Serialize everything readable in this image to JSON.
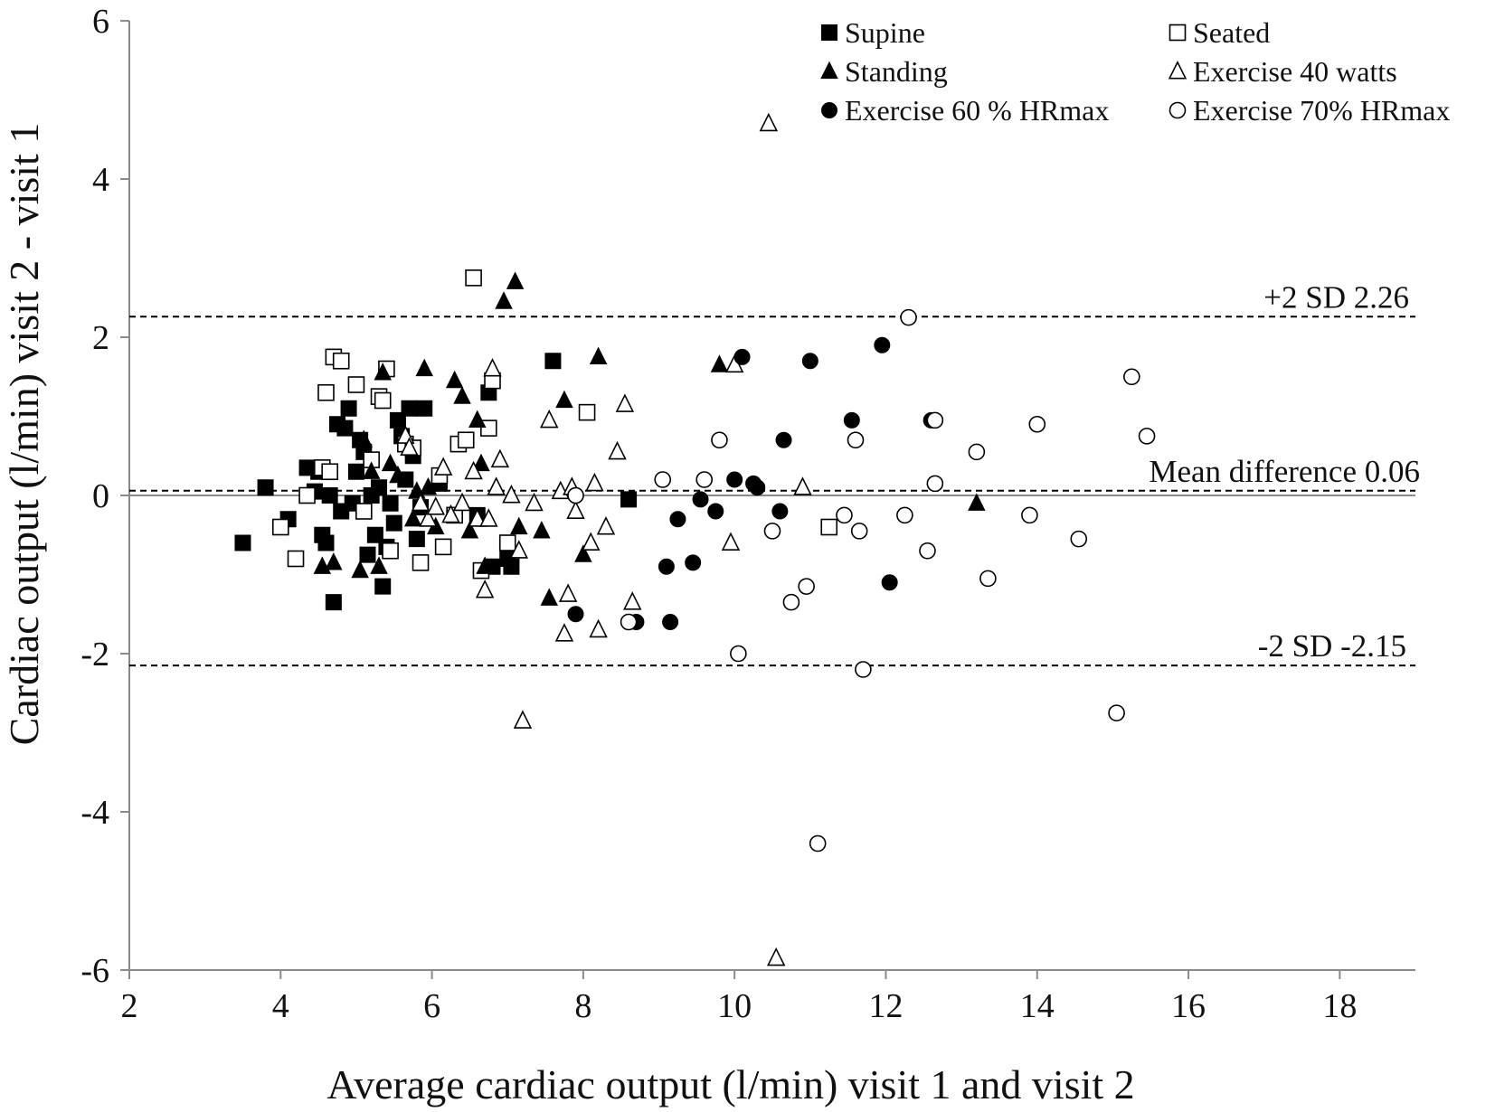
{
  "chart_data": {
    "type": "scatter",
    "xlabel": "Average cardiac output (l/min) visit 1 and visit 2",
    "ylabel": "Cardiac output (l/min) visit 2 - visit 1",
    "xlim": [
      2,
      19
    ],
    "ylim": [
      -6,
      6
    ],
    "xticks": [
      2,
      4,
      6,
      8,
      10,
      12,
      14,
      16,
      18
    ],
    "yticks": [
      6,
      4,
      2,
      0,
      -2,
      -4,
      -6
    ],
    "legend_position": "top-right",
    "zero_line": 0,
    "reference_lines": [
      {
        "label": "+2 SD 2.26",
        "y": 2.26
      },
      {
        "label": "Mean difference 0.06",
        "y": 0.06
      },
      {
        "label": "-2 SD -2.15",
        "y": -2.15
      }
    ],
    "series": [
      {
        "name": "Supine",
        "marker": "square-filled",
        "points": [
          [
            3.5,
            -0.6
          ],
          [
            3.8,
            0.1
          ],
          [
            4.1,
            -0.3
          ],
          [
            4.35,
            0.35
          ],
          [
            4.5,
            0.3
          ],
          [
            4.45,
            0.05
          ],
          [
            4.55,
            -0.5
          ],
          [
            4.6,
            -0.6
          ],
          [
            4.65,
            0.0
          ],
          [
            4.7,
            -1.35
          ],
          [
            4.75,
            0.9
          ],
          [
            4.8,
            -0.2
          ],
          [
            4.85,
            0.85
          ],
          [
            4.9,
            1.1
          ],
          [
            4.95,
            -0.1
          ],
          [
            5.0,
            0.3
          ],
          [
            5.05,
            0.7
          ],
          [
            5.1,
            0.55
          ],
          [
            5.15,
            -0.75
          ],
          [
            5.2,
            0.0
          ],
          [
            5.25,
            -0.5
          ],
          [
            5.3,
            0.1
          ],
          [
            5.35,
            -1.15
          ],
          [
            5.4,
            -0.65
          ],
          [
            5.45,
            -0.1
          ],
          [
            5.5,
            -0.35
          ],
          [
            5.55,
            0.95
          ],
          [
            5.6,
            0.75
          ],
          [
            5.65,
            0.2
          ],
          [
            5.7,
            1.1
          ],
          [
            5.75,
            0.5
          ],
          [
            5.8,
            -0.55
          ],
          [
            5.85,
            -0.15
          ],
          [
            5.9,
            1.1
          ],
          [
            6.1,
            0.15
          ],
          [
            6.6,
            -0.25
          ],
          [
            6.75,
            1.3
          ],
          [
            6.8,
            -0.9
          ],
          [
            7.0,
            -0.8
          ],
          [
            7.05,
            -0.9
          ],
          [
            7.6,
            1.7
          ],
          [
            8.6,
            -0.05
          ]
        ]
      },
      {
        "name": "Seated",
        "marker": "square-open",
        "points": [
          [
            4.0,
            -0.4
          ],
          [
            4.2,
            -0.8
          ],
          [
            4.35,
            0.0
          ],
          [
            4.55,
            0.35
          ],
          [
            4.65,
            0.3
          ],
          [
            4.6,
            1.3
          ],
          [
            4.7,
            1.75
          ],
          [
            4.8,
            1.7
          ],
          [
            5.0,
            1.4
          ],
          [
            5.1,
            -0.2
          ],
          [
            5.2,
            0.45
          ],
          [
            5.3,
            1.25
          ],
          [
            5.35,
            1.2
          ],
          [
            5.4,
            1.6
          ],
          [
            5.45,
            -0.7
          ],
          [
            5.65,
            0.65
          ],
          [
            5.75,
            0.6
          ],
          [
            5.85,
            -0.85
          ],
          [
            6.1,
            0.25
          ],
          [
            6.15,
            -0.65
          ],
          [
            6.3,
            -0.25
          ],
          [
            6.35,
            0.65
          ],
          [
            6.45,
            0.7
          ],
          [
            6.55,
            2.75
          ],
          [
            6.65,
            -0.95
          ],
          [
            6.75,
            0.85
          ],
          [
            6.8,
            1.45
          ],
          [
            7.0,
            -0.6
          ],
          [
            8.05,
            1.05
          ],
          [
            11.25,
            -0.4
          ]
        ]
      },
      {
        "name": "Standing",
        "marker": "triangle-filled",
        "points": [
          [
            4.55,
            -0.9
          ],
          [
            4.7,
            -0.85
          ],
          [
            5.05,
            -0.95
          ],
          [
            5.1,
            0.7
          ],
          [
            5.2,
            0.3
          ],
          [
            5.3,
            -0.9
          ],
          [
            5.35,
            1.55
          ],
          [
            5.45,
            0.4
          ],
          [
            5.55,
            0.25
          ],
          [
            5.75,
            -0.3
          ],
          [
            5.8,
            0.05
          ],
          [
            5.9,
            1.6
          ],
          [
            5.95,
            0.1
          ],
          [
            6.05,
            -0.4
          ],
          [
            6.3,
            1.45
          ],
          [
            6.4,
            1.25
          ],
          [
            6.5,
            -0.45
          ],
          [
            6.6,
            0.95
          ],
          [
            6.65,
            0.4
          ],
          [
            6.7,
            -0.9
          ],
          [
            6.95,
            2.45
          ],
          [
            7.1,
            2.7
          ],
          [
            7.15,
            -0.4
          ],
          [
            7.45,
            -0.45
          ],
          [
            7.55,
            -1.3
          ],
          [
            7.75,
            1.2
          ],
          [
            8.0,
            -0.75
          ],
          [
            8.2,
            1.75
          ],
          [
            9.8,
            1.65
          ],
          [
            13.2,
            -0.1
          ]
        ]
      },
      {
        "name": "Exercise 40 watts",
        "marker": "triangle-open",
        "points": [
          [
            5.65,
            0.75
          ],
          [
            5.7,
            0.6
          ],
          [
            5.85,
            -0.1
          ],
          [
            5.95,
            -0.3
          ],
          [
            6.05,
            -0.15
          ],
          [
            6.15,
            0.35
          ],
          [
            6.25,
            -0.25
          ],
          [
            6.4,
            -0.1
          ],
          [
            6.55,
            0.3
          ],
          [
            6.6,
            -0.3
          ],
          [
            6.7,
            -1.2
          ],
          [
            6.75,
            -0.3
          ],
          [
            6.8,
            1.6
          ],
          [
            6.85,
            0.1
          ],
          [
            6.9,
            0.45
          ],
          [
            7.05,
            0.0
          ],
          [
            7.15,
            -0.7
          ],
          [
            7.2,
            -2.85
          ],
          [
            7.35,
            -0.1
          ],
          [
            7.55,
            0.95
          ],
          [
            7.7,
            0.05
          ],
          [
            7.75,
            -1.75
          ],
          [
            7.8,
            -1.25
          ],
          [
            7.85,
            0.1
          ],
          [
            7.9,
            -0.2
          ],
          [
            8.1,
            -0.6
          ],
          [
            8.15,
            0.15
          ],
          [
            8.2,
            -1.7
          ],
          [
            8.3,
            -0.4
          ],
          [
            8.45,
            0.55
          ],
          [
            8.55,
            1.15
          ],
          [
            8.65,
            -1.35
          ],
          [
            9.95,
            -0.6
          ],
          [
            10.0,
            1.65
          ],
          [
            10.45,
            4.7
          ],
          [
            10.55,
            -5.85
          ],
          [
            10.9,
            0.1
          ]
        ]
      },
      {
        "name": "Exercise 60 % HRmax",
        "marker": "circle-filled",
        "points": [
          [
            7.9,
            -1.5
          ],
          [
            8.7,
            -1.6
          ],
          [
            9.1,
            -0.9
          ],
          [
            9.15,
            -1.6
          ],
          [
            9.25,
            -0.3
          ],
          [
            9.45,
            -0.85
          ],
          [
            9.55,
            -0.05
          ],
          [
            9.75,
            -0.2
          ],
          [
            10.0,
            0.2
          ],
          [
            10.1,
            1.75
          ],
          [
            10.25,
            0.15
          ],
          [
            10.3,
            0.1
          ],
          [
            10.6,
            -0.2
          ],
          [
            10.65,
            0.7
          ],
          [
            11.0,
            1.7
          ],
          [
            11.55,
            0.95
          ],
          [
            11.95,
            1.9
          ],
          [
            12.05,
            -1.1
          ],
          [
            12.6,
            0.95
          ]
        ]
      },
      {
        "name": "Exercise 70% HRmax",
        "marker": "circle-open",
        "points": [
          [
            7.9,
            0.0
          ],
          [
            8.6,
            -1.6
          ],
          [
            9.05,
            0.2
          ],
          [
            9.6,
            0.2
          ],
          [
            9.8,
            0.7
          ],
          [
            10.05,
            -2.0
          ],
          [
            10.5,
            -0.45
          ],
          [
            10.75,
            -1.35
          ],
          [
            10.95,
            -1.15
          ],
          [
            11.1,
            -4.4
          ],
          [
            11.45,
            -0.25
          ],
          [
            11.6,
            0.7
          ],
          [
            11.65,
            -0.45
          ],
          [
            11.7,
            -2.2
          ],
          [
            12.25,
            -0.25
          ],
          [
            12.3,
            2.25
          ],
          [
            12.55,
            -0.7
          ],
          [
            12.65,
            0.95
          ],
          [
            12.65,
            0.15
          ],
          [
            13.2,
            0.55
          ],
          [
            13.35,
            -1.05
          ],
          [
            13.9,
            -0.25
          ],
          [
            14.0,
            0.9
          ],
          [
            14.55,
            -0.55
          ],
          [
            15.05,
            -2.75
          ],
          [
            15.25,
            1.5
          ],
          [
            15.45,
            0.75
          ]
        ]
      }
    ]
  }
}
